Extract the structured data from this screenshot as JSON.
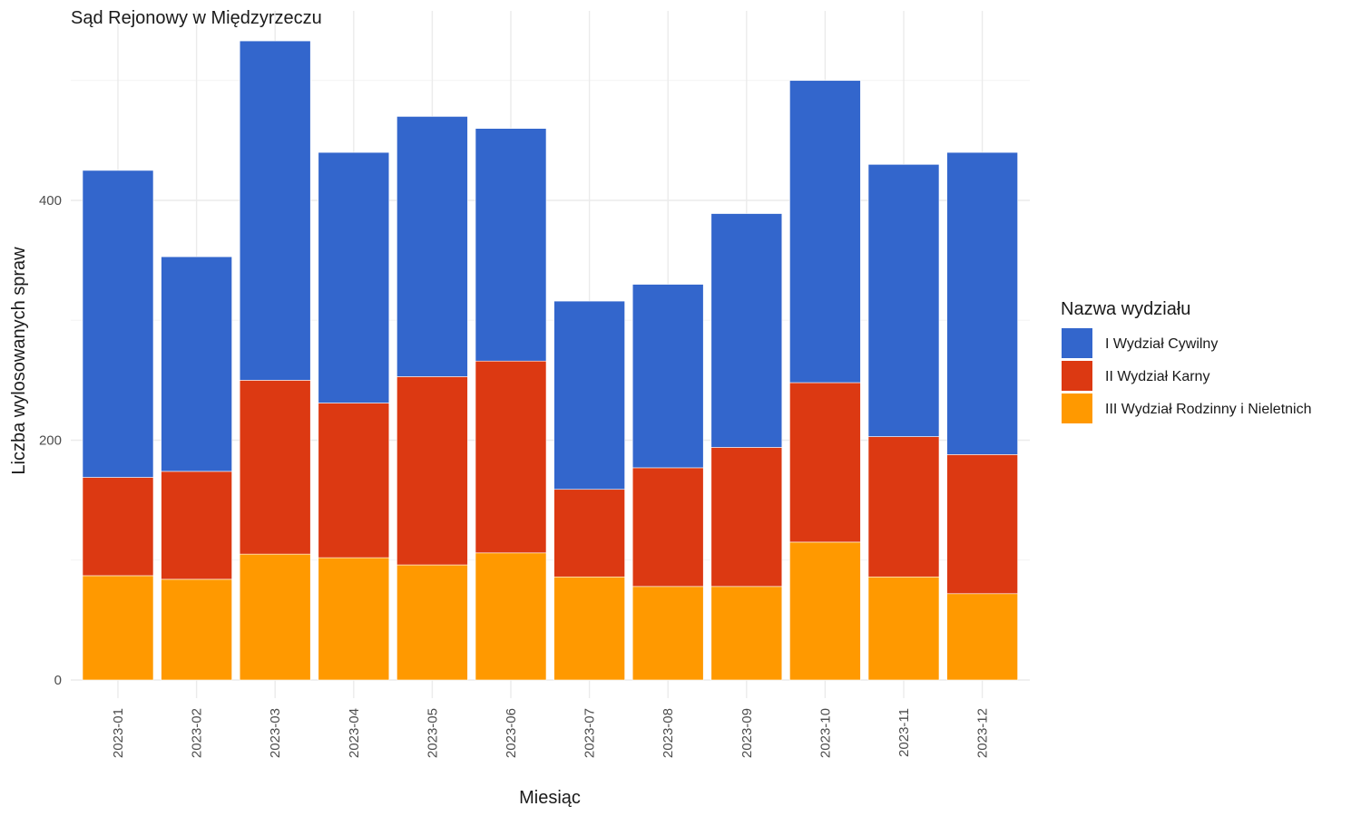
{
  "chart_data": {
    "type": "bar",
    "stacked": true,
    "title": "Sąd Rejonowy w Międzyrzeczu",
    "xlabel": "Miesiąc",
    "ylabel": "Liczba wylosowanych spraw",
    "ylim": [
      0,
      560
    ],
    "yticks": [
      0,
      200,
      400
    ],
    "grid": true,
    "legend_title": "Nazwa wydziału",
    "legend_position": "right",
    "categories": [
      "2023-01",
      "2023-02",
      "2023-03",
      "2023-04",
      "2023-05",
      "2023-06",
      "2023-07",
      "2023-08",
      "2023-09",
      "2023-10",
      "2023-11",
      "2023-12"
    ],
    "series": [
      {
        "name": "I Wydział Cywilny",
        "color": "#3366cc",
        "values": [
          256,
          179,
          283,
          209,
          217,
          194,
          157,
          153,
          195,
          252,
          227,
          252
        ]
      },
      {
        "name": "II Wydział Karny",
        "color": "#dc3912",
        "values": [
          82,
          90,
          145,
          129,
          157,
          160,
          73,
          99,
          116,
          133,
          117,
          116
        ]
      },
      {
        "name": "III Wydział Rodzinny i Nieletnich",
        "color": "#ff9900",
        "values": [
          87,
          84,
          105,
          102,
          96,
          106,
          86,
          78,
          78,
          115,
          86,
          72
        ]
      }
    ]
  }
}
